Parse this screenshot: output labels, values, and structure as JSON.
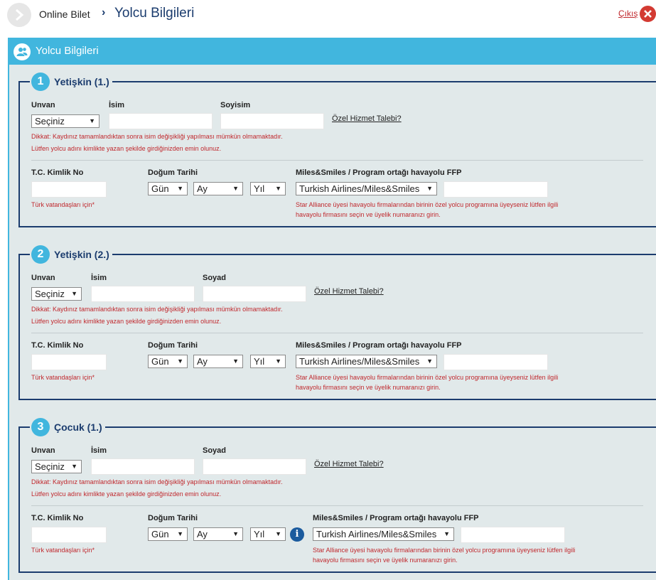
{
  "header": {
    "breadcrumb_root": "Online Bilet",
    "breadcrumb_sep": "›",
    "breadcrumb_current": "Yolcu Bilgileri",
    "exit_label": "Çıkış"
  },
  "panel": {
    "title": "Yolcu Bilgileri"
  },
  "common": {
    "title_label": "Unvan",
    "title_value": "Seçiniz",
    "special_service": "Özel Hizmet Talebi?",
    "name_warning_1": "Dikkat: Kaydınız tamamlandıktan sonra isim değişikliği yapılması mümkün olmamaktadır.",
    "name_warning_2": "Lütfen yolcu adını kimlikte yazan şekilde girdiğinizden emin olunuz.",
    "tc_label": "T.C. Kimlik No",
    "tc_note": "Türk vatandaşları için*",
    "dob_label": "Doğum Tarihi",
    "day": "Gün",
    "month": "Ay",
    "year": "Yıl",
    "ffp_label": "Miles&Smiles / Program ortağı havayolu FFP",
    "ffp_value": "Turkish Airlines/Miles&Smiles",
    "ffp_note_1": "Star Alliance üyesi havayolu firmalarından birinin özel yolcu programına üyeyseniz lütfen ilgili",
    "ffp_note_2": "havayolu firmasını seçin ve üyelik numaranızı girin."
  },
  "passengers": [
    {
      "number": "1",
      "type": "Yetişkin (1.)",
      "first_name_label": "İsim",
      "last_name_label": "Soyisim"
    },
    {
      "number": "2",
      "type": "Yetişkin (2.)",
      "first_name_label": "İsim",
      "last_name_label": "Soyad"
    },
    {
      "number": "3",
      "type": "Çocuk (1.)",
      "first_name_label": "İsim",
      "last_name_label": "Soyad"
    }
  ],
  "icons": {
    "back": "chevron-right-icon",
    "exit": "close-icon",
    "panel": "users-icon",
    "info": "info-icon"
  },
  "colors": {
    "accent": "#41b6de",
    "navy": "#1b3c6e",
    "warning": "#c0282d",
    "panel_bg": "#e1e9ea"
  }
}
